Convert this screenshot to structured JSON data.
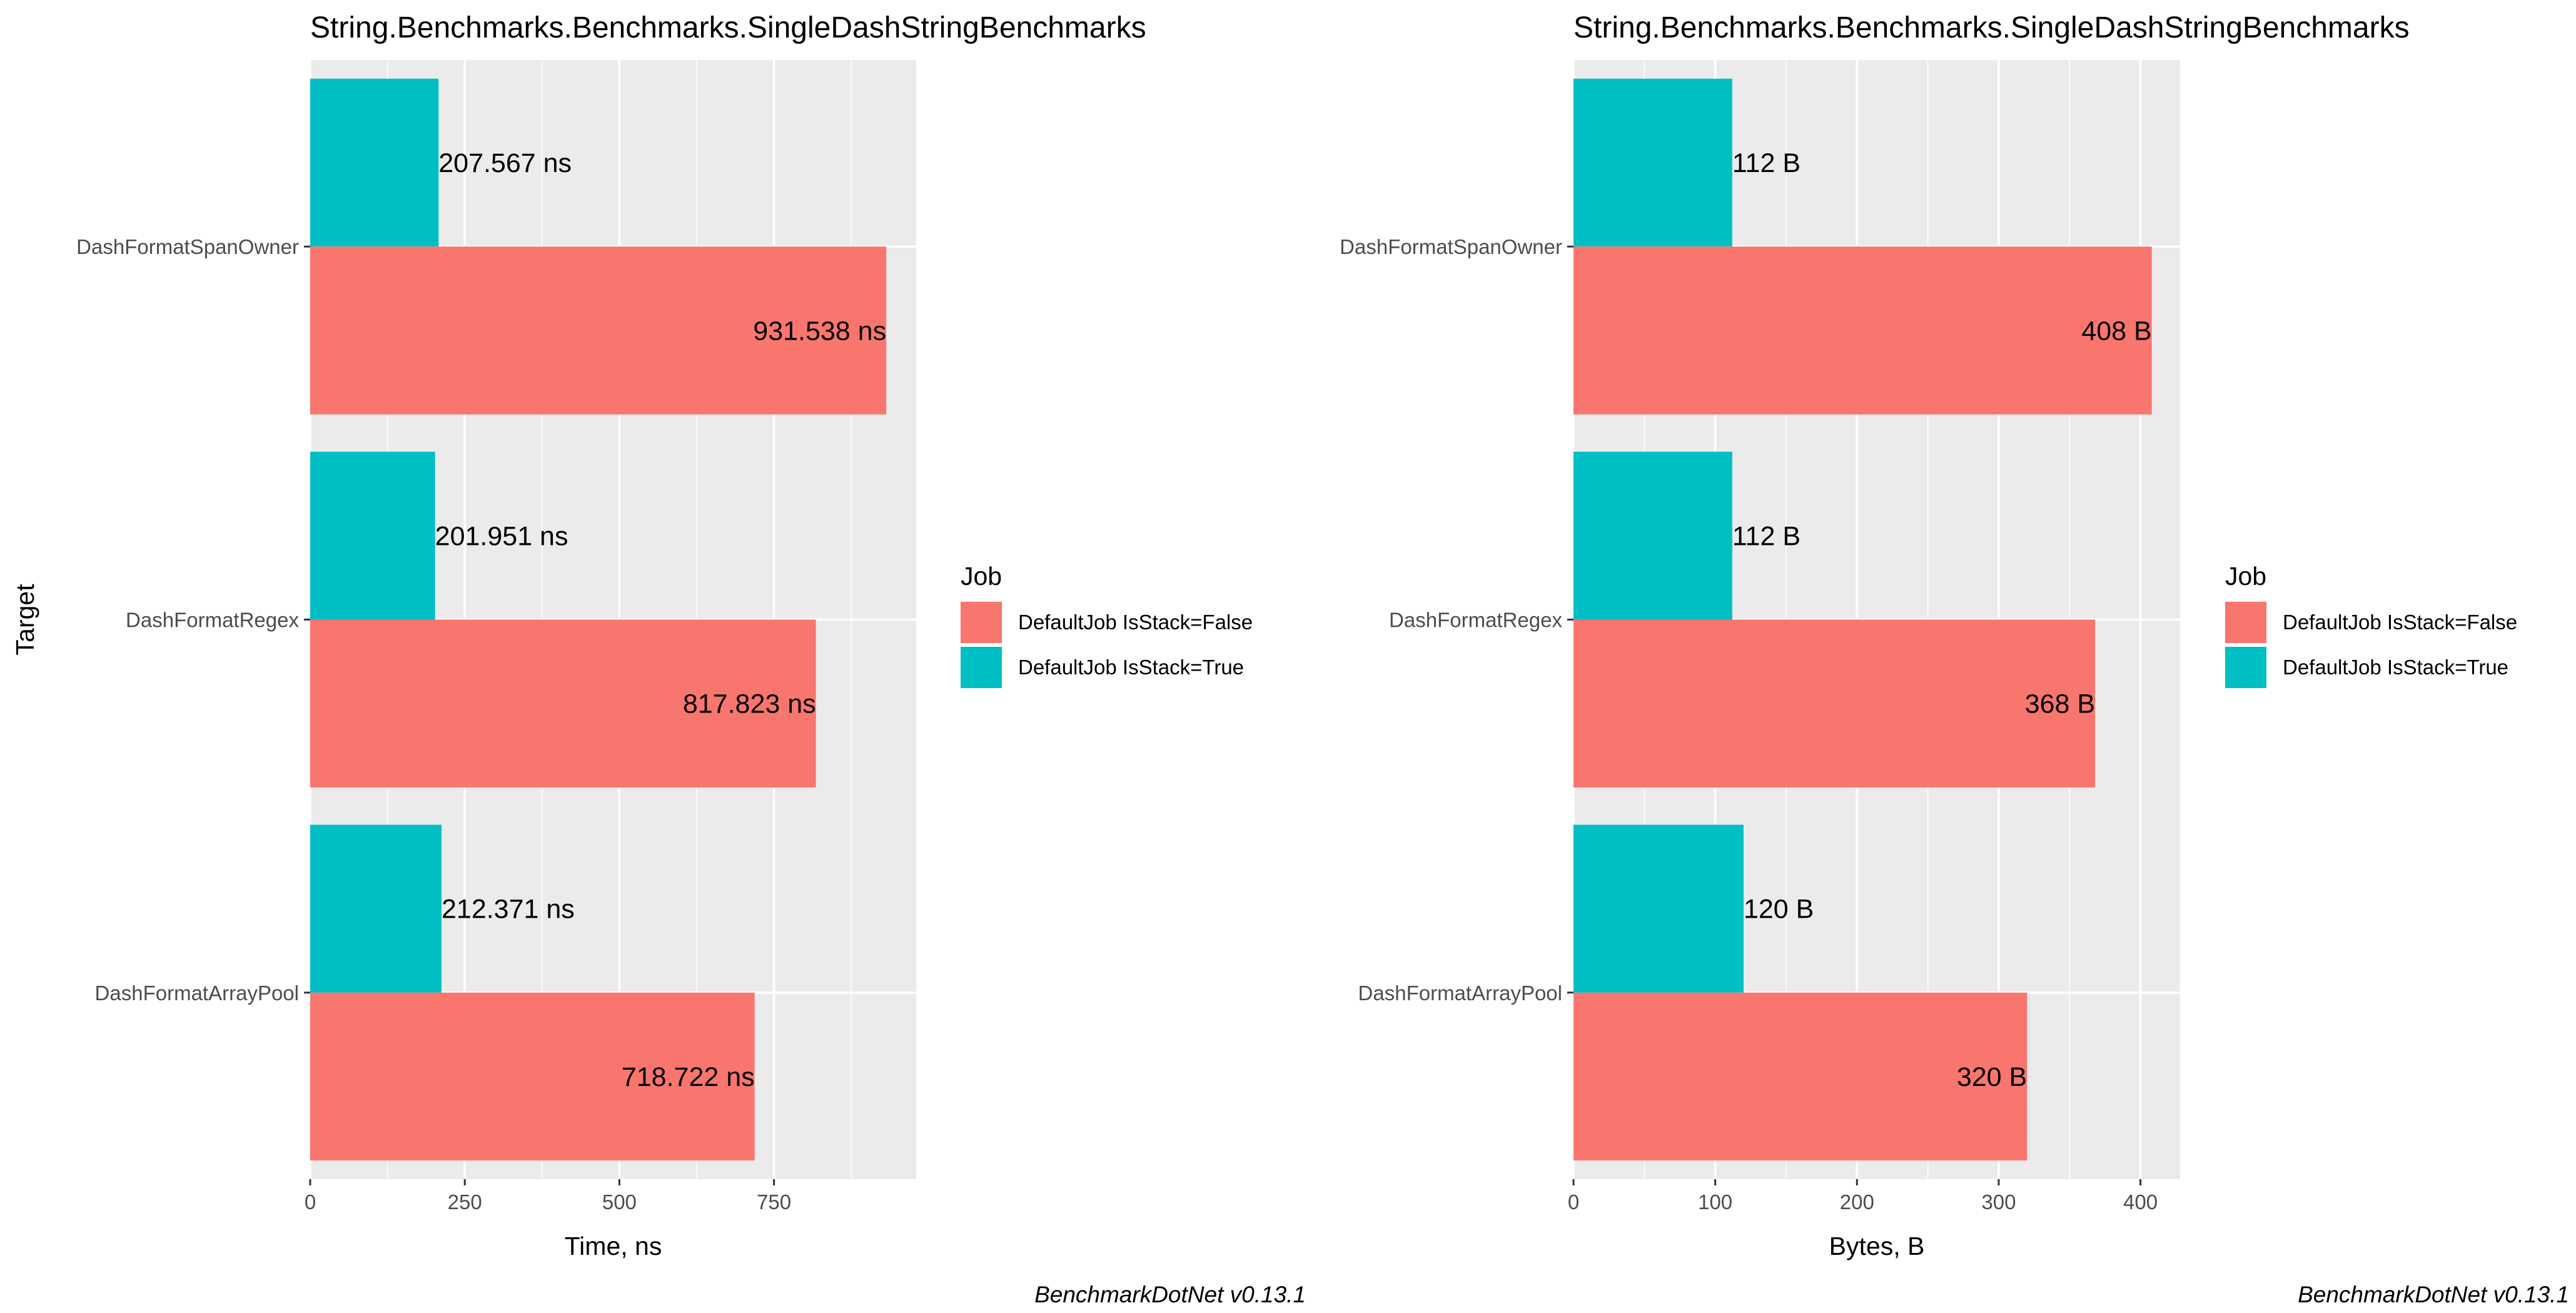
{
  "colors": {
    "false_job": "#F8766D",
    "true_job": "#00BFC4",
    "panel_bg": "#EBEBEB",
    "grid": "#FFFFFF"
  },
  "legend": {
    "title": "Job",
    "entries": [
      {
        "label": "DefaultJob IsStack=False",
        "color": "#F8766D"
      },
      {
        "label": "DefaultJob IsStack=True",
        "color": "#00BFC4"
      }
    ]
  },
  "y_axis_title": "Target",
  "caption": "BenchmarkDotNet v0.13.1",
  "chart_data": [
    {
      "type": "bar",
      "orientation": "horizontal",
      "title": "String.Benchmarks.Benchmarks.SingleDashStringBenchmarks",
      "xlabel": "Time, ns",
      "ylabel": "Target",
      "xlim": [
        0,
        980
      ],
      "x_ticks": [
        0,
        250,
        500,
        750
      ],
      "x_tick_labels": [
        "0",
        "250",
        "500",
        "750"
      ],
      "categories": [
        "DashFormatSpanOwner",
        "DashFormatRegex",
        "DashFormatArrayPool"
      ],
      "series": [
        {
          "name": "DefaultJob IsStack=False",
          "values": [
            931.538,
            817.823,
            718.722
          ],
          "labels": [
            "931.538 ns",
            "817.823 ns",
            "718.722 ns"
          ]
        },
        {
          "name": "DefaultJob IsStack=True",
          "values": [
            207.567,
            201.951,
            212.371
          ],
          "labels": [
            "207.567 ns",
            "201.951 ns",
            "212.371 ns"
          ]
        }
      ],
      "grid": true,
      "legend_position": "right"
    },
    {
      "type": "bar",
      "orientation": "horizontal",
      "title": "String.Benchmarks.Benchmarks.SingleDashStringBenchmarks",
      "xlabel": "Bytes, B",
      "ylabel": "",
      "xlim": [
        0,
        428
      ],
      "x_ticks": [
        0,
        100,
        200,
        300,
        400
      ],
      "x_tick_labels": [
        "0",
        "100",
        "200",
        "300",
        "400"
      ],
      "categories": [
        "DashFormatSpanOwner",
        "DashFormatRegex",
        "DashFormatArrayPool"
      ],
      "series": [
        {
          "name": "DefaultJob IsStack=False",
          "values": [
            408,
            368,
            320
          ],
          "labels": [
            "408 B",
            "368 B",
            "320 B"
          ]
        },
        {
          "name": "DefaultJob IsStack=True",
          "values": [
            112,
            112,
            120
          ],
          "labels": [
            "112 B",
            "112 B",
            "120 B"
          ]
        }
      ],
      "grid": true,
      "legend_position": "right"
    }
  ]
}
